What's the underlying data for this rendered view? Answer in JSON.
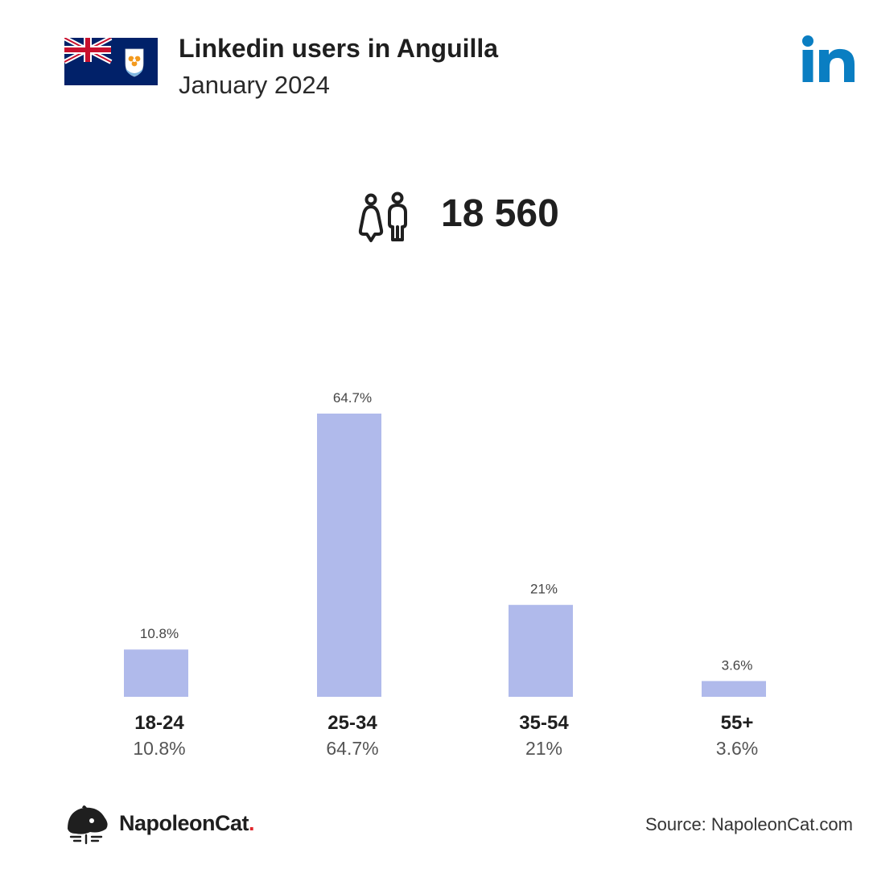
{
  "header": {
    "title": "Linkedin users in Anguilla",
    "subtitle": "January 2024",
    "flag_icon": "anguilla-flag-icon",
    "brand_icon": "linkedin-logo-icon"
  },
  "summary": {
    "icon": "users-icon",
    "total": "18 560"
  },
  "colors": {
    "bar": "#b0baeb",
    "linkedin_blue": "#0a7ec2",
    "text_dark": "#1f1f1f",
    "text_muted": "#555555",
    "napoleoncat_dot": "#e0262b"
  },
  "chart_data": {
    "type": "bar",
    "categories": [
      "18-24",
      "25-34",
      "35-54",
      "55+"
    ],
    "values": [
      10.8,
      64.7,
      21,
      3.6
    ],
    "value_labels": [
      "10.8%",
      "64.7%",
      "21%",
      "3.6%"
    ],
    "title": "",
    "xlabel": "",
    "ylabel": "",
    "ylim": [
      0,
      64.7
    ],
    "grid": false,
    "legend": "none"
  },
  "footer": {
    "brand_name": "NapoleonCat",
    "brand_dot": ".",
    "source": "Source: NapoleonCat.com",
    "logo_icon": "napoleoncat-logo-icon"
  }
}
